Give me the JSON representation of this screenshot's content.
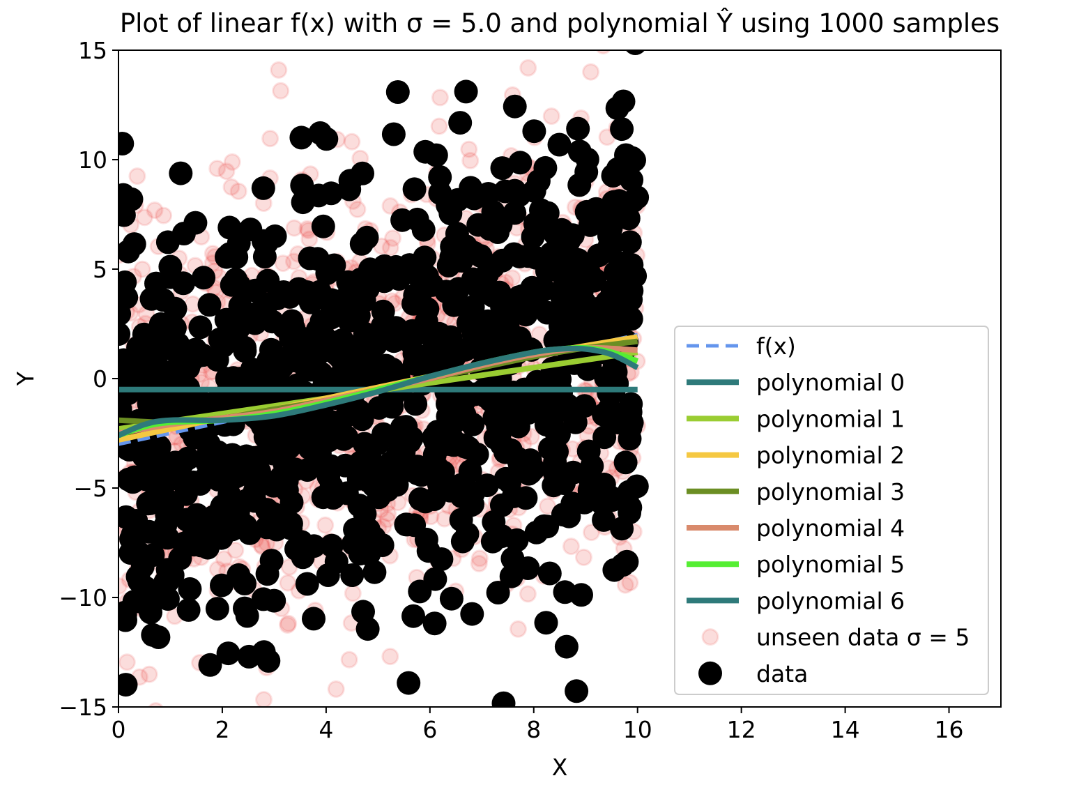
{
  "chart_data": {
    "type": "scatter",
    "title": "Plot of linear f(x) with σ = 5.0 and polynomial Ŷ using 1000 samples",
    "xlabel": "X",
    "ylabel": "Y",
    "xlim": [
      0,
      17
    ],
    "ylim": [
      -15,
      15
    ],
    "x_ticks": [
      0,
      2,
      4,
      6,
      8,
      10,
      12,
      14,
      16
    ],
    "y_ticks": [
      -15,
      -10,
      -5,
      0,
      5,
      10,
      15
    ],
    "x_tick_labels": [
      "0",
      "2",
      "4",
      "6",
      "8",
      "10",
      "12",
      "14",
      "16"
    ],
    "y_tick_labels": [
      "−15",
      "−10",
      "−5",
      "0",
      "5",
      "10",
      "15"
    ],
    "grid": false,
    "legend_position": "lower-right",
    "true_function": {
      "name": "f(x)",
      "slope": 0.5,
      "intercept": -3,
      "color": "#6495ED",
      "style": "dashed",
      "x_range": [
        0,
        10
      ]
    },
    "polynomials": [
      {
        "name": "polynomial 0",
        "color": "#2E7A7A",
        "x": [
          0,
          10
        ],
        "y": [
          -0.5,
          -0.5
        ]
      },
      {
        "name": "polynomial 1",
        "color": "#9ACD32",
        "x": [
          0,
          10
        ],
        "y": [
          -2.3,
          1.2
        ]
      },
      {
        "name": "polynomial 2",
        "color": "#F5C842",
        "x": [
          0,
          1,
          2,
          3,
          4,
          5,
          6,
          7,
          8,
          9,
          10
        ],
        "y": [
          -2.8,
          -2.3,
          -1.8,
          -1.4,
          -0.9,
          -0.4,
          0.1,
          0.6,
          1.1,
          1.5,
          1.9
        ]
      },
      {
        "name": "polynomial 3",
        "color": "#6B8E23",
        "x": [
          0,
          1,
          2,
          3,
          4,
          5,
          6,
          7,
          8,
          9,
          10
        ],
        "y": [
          -1.9,
          -2.0,
          -1.8,
          -1.4,
          -1.0,
          -0.5,
          0.0,
          0.5,
          1.0,
          1.4,
          1.7
        ]
      },
      {
        "name": "polynomial 4",
        "color": "#D98A6C",
        "x": [
          0,
          1,
          2,
          3,
          4,
          5,
          6,
          7,
          8,
          9,
          10
        ],
        "y": [
          -2.5,
          -2.1,
          -1.8,
          -1.5,
          -1.0,
          -0.5,
          0.0,
          0.6,
          1.1,
          1.4,
          1.3
        ]
      },
      {
        "name": "polynomial 5",
        "color": "#55EE33",
        "x": [
          0,
          0.5,
          1,
          2,
          3,
          4,
          5,
          6,
          7,
          8,
          8.5,
          9,
          9.5,
          10
        ],
        "y": [
          -2.6,
          -2.2,
          -2.0,
          -1.9,
          -1.6,
          -1.1,
          -0.5,
          0.1,
          0.7,
          1.2,
          1.35,
          1.4,
          1.2,
          0.8
        ]
      },
      {
        "name": "polynomial 6",
        "color": "#2E7A7A",
        "x": [
          0,
          0.5,
          1,
          2,
          3,
          4,
          5,
          6,
          7,
          8,
          8.5,
          9,
          9.5,
          10
        ],
        "y": [
          -2.6,
          -2.1,
          -1.9,
          -1.9,
          -1.7,
          -1.2,
          -0.6,
          0.1,
          0.7,
          1.2,
          1.35,
          1.35,
          1.1,
          0.5
        ]
      }
    ],
    "scatter_series": [
      {
        "name": "unseen data σ = 5",
        "color": "#E8413C",
        "opacity": 0.18,
        "n": 1000,
        "x_range": [
          0,
          10
        ],
        "noise_sigma": 5
      },
      {
        "name": "data",
        "color": "#000000",
        "n": 1000,
        "x_range": [
          0,
          10
        ],
        "noise_sigma": 5
      }
    ]
  }
}
